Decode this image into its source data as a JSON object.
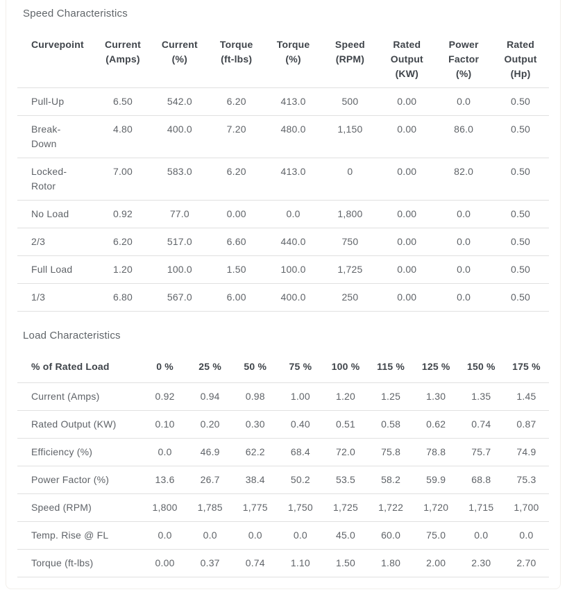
{
  "colors": {
    "card_border": "#f2efeb",
    "row_border": "#e0e0e0",
    "title_text": "#5f6468",
    "header_text": "#3f444a",
    "body_text": "#5f6368"
  },
  "speed": {
    "title": "Speed Characteristics",
    "columns": [
      {
        "lines": [
          "Curvepoint"
        ]
      },
      {
        "lines": [
          "Current",
          "(Amps)"
        ]
      },
      {
        "lines": [
          "Current",
          "(%)"
        ]
      },
      {
        "lines": [
          "Torque",
          "(ft-lbs)"
        ]
      },
      {
        "lines": [
          "Torque",
          "(%)"
        ]
      },
      {
        "lines": [
          "Speed",
          "(RPM)"
        ]
      },
      {
        "lines": [
          "Rated",
          "Output",
          "(KW)"
        ]
      },
      {
        "lines": [
          "Power",
          "Factor",
          "(%)"
        ]
      },
      {
        "lines": [
          "Rated",
          "Output",
          "(Hp)"
        ]
      }
    ],
    "rows": [
      {
        "label": {
          "lines": [
            "Pull-Up"
          ]
        },
        "values": [
          "6.50",
          "542.0",
          "6.20",
          "413.0",
          "500",
          "0.00",
          "0.0",
          "0.50"
        ]
      },
      {
        "label": {
          "lines": [
            "Break-",
            "Down"
          ]
        },
        "values": [
          "4.80",
          "400.0",
          "7.20",
          "480.0",
          "1,150",
          "0.00",
          "86.0",
          "0.50"
        ]
      },
      {
        "label": {
          "lines": [
            "Locked-",
            "Rotor"
          ]
        },
        "values": [
          "7.00",
          "583.0",
          "6.20",
          "413.0",
          "0",
          "0.00",
          "82.0",
          "0.50"
        ]
      },
      {
        "label": {
          "lines": [
            "No Load"
          ]
        },
        "values": [
          "0.92",
          "77.0",
          "0.00",
          "0.0",
          "1,800",
          "0.00",
          "0.0",
          "0.50"
        ]
      },
      {
        "label": {
          "lines": [
            "2/3"
          ]
        },
        "values": [
          "6.20",
          "517.0",
          "6.60",
          "440.0",
          "750",
          "0.00",
          "0.0",
          "0.50"
        ]
      },
      {
        "label": {
          "lines": [
            "Full Load"
          ]
        },
        "values": [
          "1.20",
          "100.0",
          "1.50",
          "100.0",
          "1,725",
          "0.00",
          "0.0",
          "0.50"
        ]
      },
      {
        "label": {
          "lines": [
            "1/3"
          ]
        },
        "values": [
          "6.80",
          "567.0",
          "6.00",
          "400.0",
          "250",
          "0.00",
          "0.0",
          "0.50"
        ]
      }
    ]
  },
  "load": {
    "title": "Load Characteristics",
    "columns": [
      {
        "lines": [
          "% of Rated Load"
        ]
      },
      {
        "lines": [
          "0 %"
        ]
      },
      {
        "lines": [
          "25 %"
        ]
      },
      {
        "lines": [
          "50 %"
        ]
      },
      {
        "lines": [
          "75 %"
        ]
      },
      {
        "lines": [
          "100 %"
        ]
      },
      {
        "lines": [
          "115 %"
        ]
      },
      {
        "lines": [
          "125 %"
        ]
      },
      {
        "lines": [
          "150 %"
        ]
      },
      {
        "lines": [
          "175 %"
        ]
      }
    ],
    "rows": [
      {
        "label": {
          "lines": [
            "Current (Amps)"
          ]
        },
        "values": [
          "0.92",
          "0.94",
          "0.98",
          "1.00",
          "1.20",
          "1.25",
          "1.30",
          "1.35",
          "1.45"
        ]
      },
      {
        "label": {
          "lines": [
            "Rated Output (KW)"
          ]
        },
        "values": [
          "0.10",
          "0.20",
          "0.30",
          "0.40",
          "0.51",
          "0.58",
          "0.62",
          "0.74",
          "0.87"
        ]
      },
      {
        "label": {
          "lines": [
            "Efficiency (%)"
          ]
        },
        "values": [
          "0.0",
          "46.9",
          "62.2",
          "68.4",
          "72.0",
          "75.8",
          "78.8",
          "75.7",
          "74.9"
        ]
      },
      {
        "label": {
          "lines": [
            "Power Factor (%)"
          ]
        },
        "values": [
          "13.6",
          "26.7",
          "38.4",
          "50.2",
          "53.5",
          "58.2",
          "59.9",
          "68.8",
          "75.3"
        ]
      },
      {
        "label": {
          "lines": [
            "Speed (RPM)"
          ]
        },
        "values": [
          "1,800",
          "1,785",
          "1,775",
          "1,750",
          "1,725",
          "1,722",
          "1,720",
          "1,715",
          "1,700"
        ]
      },
      {
        "label": {
          "lines": [
            "Temp. Rise @ FL"
          ]
        },
        "values": [
          "0.0",
          "0.0",
          "0.0",
          "0.0",
          "45.0",
          "60.0",
          "75.0",
          "0.0",
          "0.0"
        ]
      },
      {
        "label": {
          "lines": [
            "Torque (ft-lbs)"
          ]
        },
        "values": [
          "0.00",
          "0.37",
          "0.74",
          "1.10",
          "1.50",
          "1.80",
          "2.00",
          "2.30",
          "2.70"
        ]
      }
    ]
  }
}
